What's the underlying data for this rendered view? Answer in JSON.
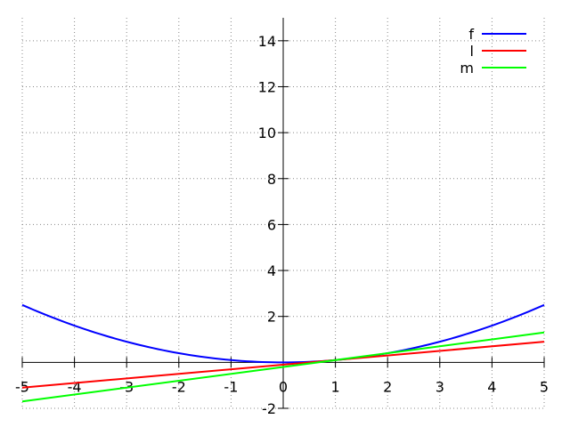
{
  "chart_data": {
    "type": "line",
    "title": "",
    "xlabel": "",
    "ylabel": "",
    "xlim": [
      -5,
      5
    ],
    "ylim": [
      -2,
      15
    ],
    "grid": true,
    "legend_position": "top-right",
    "x_ticks": [
      "-5",
      "-4",
      "-3",
      "-2",
      "-1",
      "0",
      "1",
      "2",
      "3",
      "4",
      "5"
    ],
    "y_ticks": [
      "-2",
      "2",
      "4",
      "6",
      "8",
      "10",
      "12",
      "14"
    ],
    "series": [
      {
        "name": "f",
        "color": "#0000ff",
        "x": [
          -5,
          -4,
          -3,
          -2,
          -1,
          0,
          1,
          2,
          3,
          4,
          5
        ],
        "y": [
          2.5,
          1.6,
          0.9,
          0.4,
          0.1,
          0.0,
          0.1,
          0.4,
          0.9,
          1.6,
          2.5
        ]
      },
      {
        "name": "l",
        "color": "#ff0000",
        "x": [
          -5,
          5
        ],
        "y": [
          -1.1,
          0.9
        ]
      },
      {
        "name": "m",
        "color": "#00ff00",
        "x": [
          -5,
          5
        ],
        "y": [
          -1.7,
          1.3
        ]
      }
    ]
  }
}
